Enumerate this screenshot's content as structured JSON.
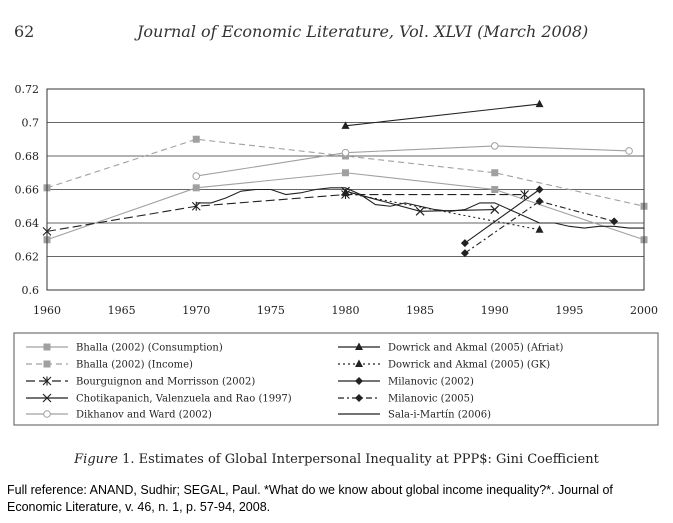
{
  "header": {
    "page_number": "62",
    "journal": "Journal of Economic Literature, Vol. XLVI (March 2008)"
  },
  "caption": {
    "figure_label": "Figure",
    "text": " 1. Estimates of Global Interpersonal Inequality at PPP$: Gini Coefficient"
  },
  "full_reference": "Full reference: ANAND, Sudhir; SEGAL, Paul. *What do we know about global income inequality?*. Journal of Economic Literature, v. 46, n. 1, p. 57-94, 2008.",
  "chart_data": {
    "type": "line",
    "title": "",
    "xlabel": "",
    "ylabel": "",
    "xlim": [
      1960,
      2000
    ],
    "ylim": [
      0.6,
      0.72
    ],
    "xticks": [
      1960,
      1965,
      1970,
      1975,
      1980,
      1985,
      1990,
      1995,
      2000
    ],
    "yticks": [
      "0.72",
      "0.7",
      "0.68",
      "0.66",
      "0.64",
      "0.62",
      "0.6"
    ],
    "grid": "horizontal",
    "series": [
      {
        "name": "Bhalla (2002) (Consumption)",
        "color": "#a0a0a0",
        "dash": "solid",
        "marker": "square",
        "x": [
          1960,
          1970,
          1980,
          1990,
          2000
        ],
        "y": [
          0.63,
          0.661,
          0.67,
          0.66,
          0.63
        ]
      },
      {
        "name": "Bhalla (2002) (Income)",
        "color": "#a0a0a0",
        "dash": "dashed",
        "marker": "square",
        "x": [
          1960,
          1970,
          1980,
          1990,
          2000
        ],
        "y": [
          0.661,
          0.69,
          0.68,
          0.67,
          0.65
        ]
      },
      {
        "name": "Bourguignon and Morrisson (2002)",
        "color": "#222222",
        "dash": "longdash",
        "marker": "asterisk",
        "x": [
          1960,
          1970,
          1980,
          1992
        ],
        "y": [
          0.635,
          0.65,
          0.657,
          0.657
        ]
      },
      {
        "name": "Chotikapanich, Valenzuela and Rao (1997)",
        "color": "#222222",
        "dash": "solid",
        "marker": "x",
        "x": [
          1980,
          1985,
          1990
        ],
        "y": [
          0.659,
          0.647,
          0.648
        ]
      },
      {
        "name": "Dikhanov and Ward (2002)",
        "color": "#a0a0a0",
        "dash": "solid",
        "marker": "circle",
        "x": [
          1970,
          1980,
          1990,
          1999
        ],
        "y": [
          0.668,
          0.682,
          0.686,
          0.683
        ]
      },
      {
        "name": "Dowrick and Akmal (2005) (Afriat)",
        "color": "#222222",
        "dash": "solid",
        "marker": "triangle",
        "x": [
          1980,
          1993
        ],
        "y": [
          0.698,
          0.711
        ]
      },
      {
        "name": "Dowrick and Akmal (2005) (GK)",
        "color": "#222222",
        "dash": "dotted",
        "marker": "triangle",
        "x": [
          1980,
          1993
        ],
        "y": [
          0.658,
          0.636
        ]
      },
      {
        "name": "Milanovic (2002)",
        "color": "#222222",
        "dash": "solid",
        "marker": "diamond",
        "x": [
          1988,
          1993
        ],
        "y": [
          0.628,
          0.66
        ]
      },
      {
        "name": "Milanovic (2005)",
        "color": "#222222",
        "dash": "dashdot",
        "marker": "diamond",
        "x": [
          1988,
          1993,
          1998
        ],
        "y": [
          0.622,
          0.653,
          0.641
        ]
      },
      {
        "name": "Sala-i-Martín (2006)",
        "color": "#222222",
        "dash": "solid",
        "marker": "none",
        "x": [
          1970,
          1971,
          1972,
          1973,
          1974,
          1975,
          1976,
          1977,
          1978,
          1979,
          1980,
          1981,
          1982,
          1983,
          1984,
          1985,
          1986,
          1987,
          1988,
          1989,
          1990,
          1991,
          1992,
          1993,
          1994,
          1995,
          1996,
          1997,
          1998,
          1999,
          2000
        ],
        "y": [
          0.652,
          0.652,
          0.655,
          0.659,
          0.66,
          0.66,
          0.657,
          0.658,
          0.66,
          0.661,
          0.661,
          0.657,
          0.651,
          0.65,
          0.652,
          0.65,
          0.648,
          0.647,
          0.648,
          0.652,
          0.652,
          0.648,
          0.644,
          0.64,
          0.64,
          0.638,
          0.637,
          0.638,
          0.638,
          0.637,
          0.637
        ]
      }
    ],
    "legend": {
      "placement": "below",
      "columns": 2
    }
  }
}
